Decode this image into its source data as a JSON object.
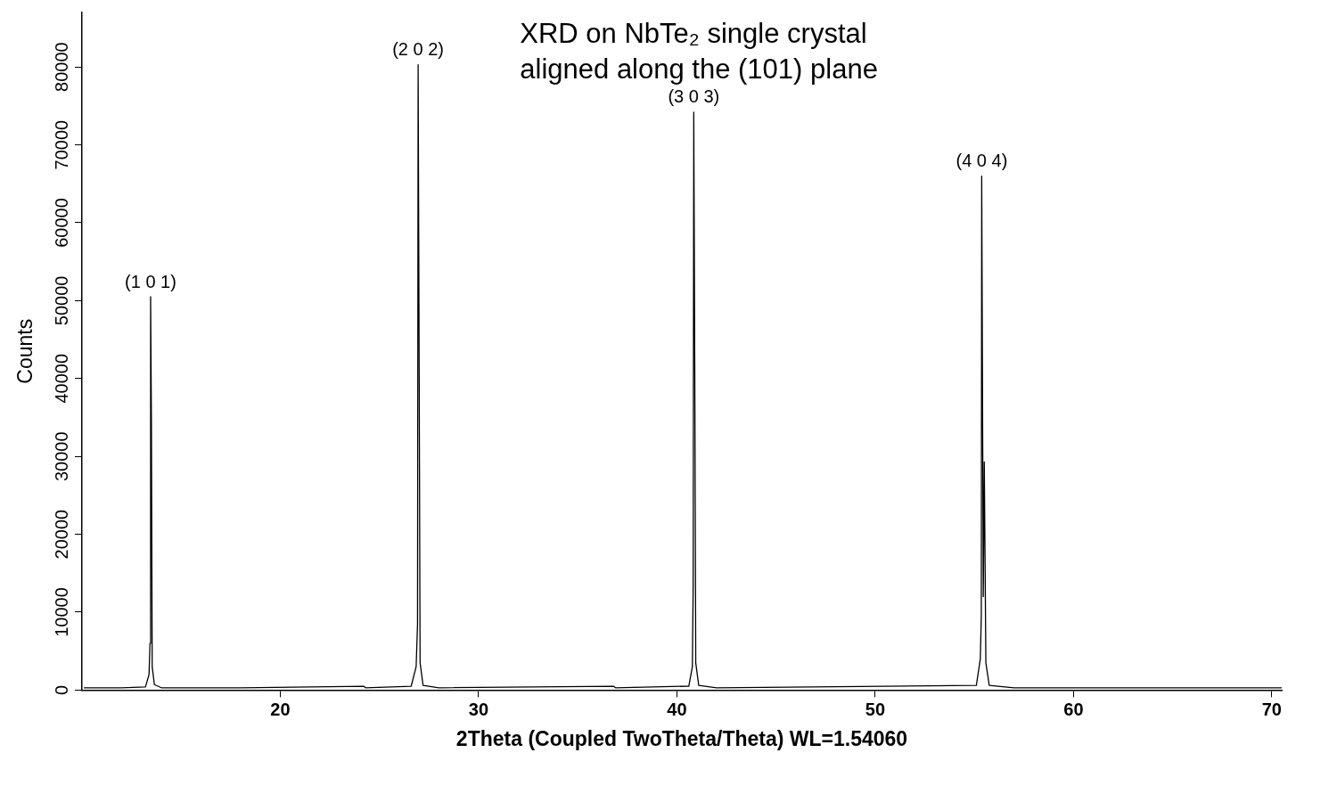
{
  "chart_data": {
    "type": "line",
    "title": "XRD on NbTe₂ single crystal\naligned along the (101) plane",
    "xlabel": "2Theta (Coupled TwoTheta/Theta) WL=1.54060",
    "ylabel": "Counts",
    "x": [
      10.1,
      12,
      13.2,
      13.38,
      13.43,
      13.46,
      13.5,
      13.54,
      13.65,
      14,
      18,
      24.2,
      24.3,
      26.6,
      26.85,
      26.92,
      26.95,
      27.0,
      27.05,
      27.2,
      28,
      36.8,
      36.9,
      40.6,
      40.78,
      40.82,
      40.85,
      40.9,
      40.95,
      41.1,
      42,
      55.1,
      55.3,
      55.35,
      55.37,
      55.45,
      55.5,
      55.58,
      55.75,
      57,
      70.5
    ],
    "values": [
      300,
      300,
      400,
      2000,
      6000,
      50500,
      34500,
      3000,
      700,
      300,
      300,
      500,
      300,
      500,
      3000,
      8500,
      80300,
      43000,
      3500,
      600,
      300,
      500,
      300,
      500,
      3000,
      13500,
      74200,
      41500,
      3500,
      600,
      300,
      600,
      4000,
      9500,
      66000,
      12000,
      29300,
      3500,
      600,
      300,
      300
    ],
    "color": "#000000",
    "marker": "none",
    "line_style": "solid",
    "grid": false,
    "legend": false,
    "xlim": [
      10,
      70.5
    ],
    "xticks": [
      20,
      30,
      40,
      50,
      60,
      70
    ],
    "ylim": [
      0,
      87000
    ],
    "yticks": [
      0,
      10000,
      20000,
      30000,
      40000,
      50000,
      60000,
      70000,
      80000
    ],
    "annotations": [
      {
        "text": "(1 0 1)",
        "x": 13.46,
        "y": 50500
      },
      {
        "text": "(2 0 2)",
        "x": 26.95,
        "y": 80300
      },
      {
        "text": "(3 0 3)",
        "x": 40.85,
        "y": 74200
      },
      {
        "text": "(4 0 4)",
        "x": 55.37,
        "y": 66000
      }
    ]
  }
}
